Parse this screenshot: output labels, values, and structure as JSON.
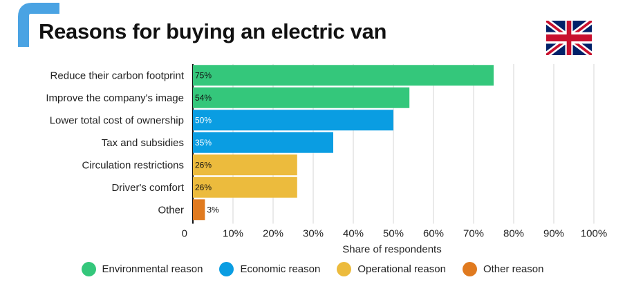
{
  "title": "Reasons for buying an electric van",
  "colors": {
    "environmental": "#34c77b",
    "economic": "#0a9de2",
    "operational": "#ecbb3d",
    "other": "#e07a1f",
    "accent": "#4aa3e3"
  },
  "chart_data": {
    "type": "bar",
    "orientation": "horizontal",
    "title": "Reasons for buying an electric van",
    "xlabel": "Share of respondents",
    "ylabel": "",
    "xlim": [
      0,
      100
    ],
    "ticks": [
      "0",
      "10%",
      "20%",
      "30%",
      "40%",
      "50%",
      "60%",
      "70%",
      "80%",
      "90%",
      "100%"
    ],
    "grid": true,
    "legend_position": "bottom",
    "categories": [
      "Reduce their carbon footprint",
      "Improve the company's image",
      "Lower total cost of ownership",
      "Tax and subsidies",
      "Circulation restrictions",
      "Driver's comfort",
      "Other"
    ],
    "values": [
      75,
      54,
      50,
      35,
      26,
      26,
      3
    ],
    "value_labels": [
      "75%",
      "54%",
      "50%",
      "35%",
      "26%",
      "26%",
      "3%"
    ],
    "groups": [
      "environmental",
      "environmental",
      "economic",
      "economic",
      "operational",
      "operational",
      "other"
    ],
    "legend": [
      {
        "key": "environmental",
        "label": "Environmental reason"
      },
      {
        "key": "economic",
        "label": "Economic reason"
      },
      {
        "key": "operational",
        "label": "Operational reason"
      },
      {
        "key": "other",
        "label": "Other reason"
      }
    ]
  }
}
